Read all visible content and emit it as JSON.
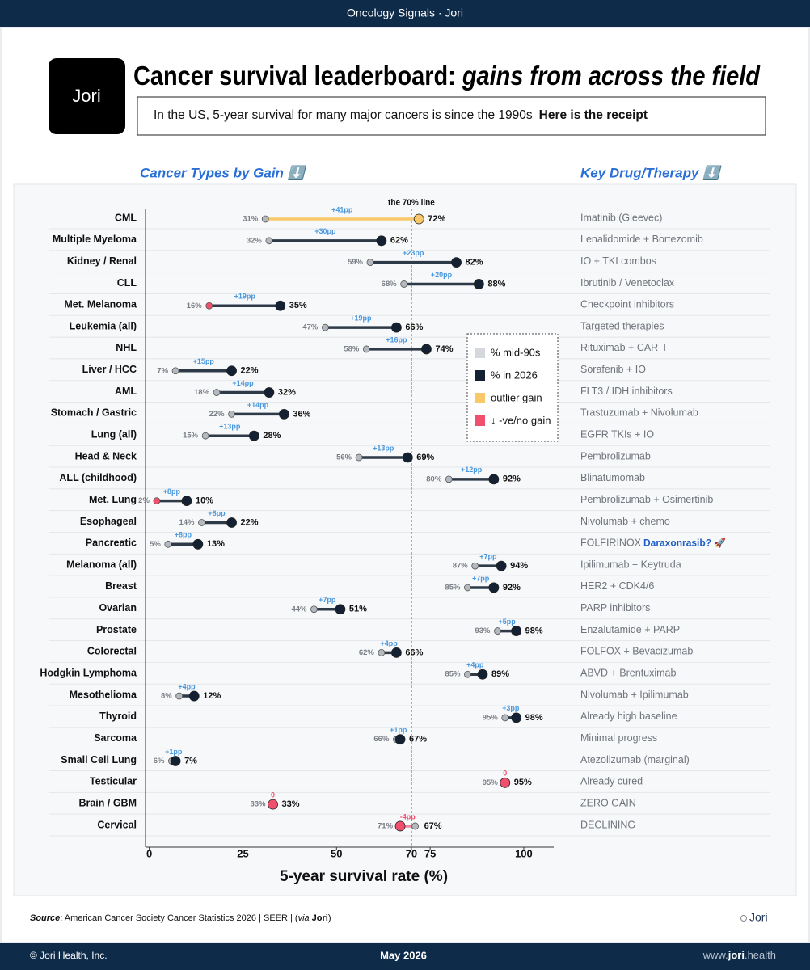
{
  "header": {
    "banner": "Oncology Signals · Jori",
    "logo": "Jori",
    "title": "Cancer survival leaderboard: ",
    "title_emphasis": "gains from across the field",
    "subtitle": "In the US, 5-year survival for many major cancers is since the 1990s",
    "subtitle_emphasis": "Here is the receipt",
    "left_heading": "Cancer Types by Gain ⬇️",
    "right_heading": "Key Drug/Therapy ⬇️"
  },
  "chart_data": {
    "type": "dumbbell",
    "categories": [
      "CML",
      "Multiple Myeloma",
      "Kidney / Renal",
      "CLL",
      "Met. Melanoma",
      "Leukemia (all)",
      "NHL",
      "Liver / HCC",
      "AML",
      "Stomach / Gastric",
      "Lung (all)",
      "Head & Neck",
      "ALL (childhood)",
      "Met. Lung",
      "Esophageal",
      "Pancreatic",
      "Melanoma (all)",
      "Breast",
      "Ovarian",
      "Prostate",
      "Colorectal",
      "Hodgkin Lymphoma",
      "Mesothelioma",
      "Thyroid",
      "Sarcoma",
      "Small Cell Lung",
      "Testicular",
      "Brain / GBM",
      "Cervical"
    ],
    "series": [
      {
        "name": "% mid-90s",
        "color": "#d4d7db",
        "values": [
          31,
          32,
          59,
          68,
          16,
          47,
          58,
          7,
          18,
          22,
          15,
          56,
          80,
          2,
          14,
          5,
          87,
          85,
          44,
          93,
          62,
          85,
          8,
          95,
          66,
          6,
          95,
          33,
          71
        ],
        "value_labels": [
          "31%",
          "32%",
          "59%",
          "68%",
          "16%",
          "47%",
          "58%",
          "7%",
          "18%",
          "22%",
          "15%",
          "56%",
          "80%",
          "2%",
          "14%",
          "5%",
          "87%",
          "85%",
          "44%",
          "93%",
          "62%",
          "85%",
          "8%",
          "95%",
          "66%",
          "6%",
          "95%",
          "33%",
          "71%"
        ],
        "colors": [
          "#b4b9c0",
          "#b4b9c0",
          "#b4b9c0",
          "#b4b9c0",
          "#f0506e",
          "#b4b9c0",
          "#b4b9c0",
          "#b4b9c0",
          "#b4b9c0",
          "#b4b9c0",
          "#b4b9c0",
          "#b4b9c0",
          "#b4b9c0",
          "#f0506e",
          "#b4b9c0",
          "#b4b9c0",
          "#b4b9c0",
          "#b4b9c0",
          "#b4b9c0",
          "#b4b9c0",
          "#b4b9c0",
          "#b4b9c0",
          "#b4b9c0",
          "#b4b9c0",
          "#b4b9c0",
          "#b4b9c0",
          "#f0506e",
          "#f0506e",
          "#b4b9c0"
        ]
      },
      {
        "name": "% in 2026",
        "color": "#142132",
        "values": [
          72,
          62,
          82,
          88,
          35,
          66,
          74,
          22,
          32,
          36,
          28,
          69,
          92,
          10,
          22,
          13,
          94,
          92,
          51,
          98,
          66,
          89,
          12,
          98,
          67,
          7,
          95,
          33,
          67
        ],
        "value_labels": [
          "72%",
          "62%",
          "82%",
          "88%",
          "35%",
          "66%",
          "74%",
          "22%",
          "32%",
          "36%",
          "28%",
          "69%",
          "92%",
          "10%",
          "22%",
          "13%",
          "94%",
          "92%",
          "51%",
          "98%",
          "66%",
          "89%",
          "12%",
          "98%",
          "67%",
          "7%",
          "95%",
          "33%",
          "67%"
        ],
        "colors": [
          "#f8c86a",
          "#142132",
          "#142132",
          "#142132",
          "#142132",
          "#142132",
          "#142132",
          "#142132",
          "#142132",
          "#142132",
          "#142132",
          "#142132",
          "#142132",
          "#142132",
          "#142132",
          "#142132",
          "#142132",
          "#142132",
          "#142132",
          "#142132",
          "#142132",
          "#142132",
          "#142132",
          "#142132",
          "#142132",
          "#142132",
          "#f0506e",
          "#f0506e",
          "#f0506e"
        ]
      }
    ],
    "line_colors": [
      "#f8c86a",
      "#2e3a48",
      "#2e3a48",
      "#2e3a48",
      "#2e3a48",
      "#2e3a48",
      "#2e3a48",
      "#2e3a48",
      "#2e3a48",
      "#2e3a48",
      "#2e3a48",
      "#2e3a48",
      "#2e3a48",
      "#2e3a48",
      "#2e3a48",
      "#2e3a48",
      "#2e3a48",
      "#2e3a48",
      "#2e3a48",
      "#2e3a48",
      "#2e3a48",
      "#2e3a48",
      "#2e3a48",
      "#2e3a48",
      "#2e3a48",
      "#2e3a48",
      "#2e3a48",
      "#2e3a48",
      "#f48aa0"
    ],
    "gain_labels": [
      "+41pp",
      "+30pp",
      "+23pp",
      "+20pp",
      "+19pp",
      "+19pp",
      "+16pp",
      "+15pp",
      "+14pp",
      "+14pp",
      "+13pp",
      "+13pp",
      "+12pp",
      "+8pp",
      "+8pp",
      "+8pp",
      "+7pp",
      "+7pp",
      "+7pp",
      "+5pp",
      "+4pp",
      "+4pp",
      "+4pp",
      "+3pp",
      "+1pp",
      "+1pp",
      "0",
      "0",
      "-4pp"
    ],
    "gain_label_colors": [
      "#4a97dc",
      "#4a97dc",
      "#4a97dc",
      "#4a97dc",
      "#4a97dc",
      "#4a97dc",
      "#4a97dc",
      "#4a97dc",
      "#4a97dc",
      "#4a97dc",
      "#4a97dc",
      "#4a97dc",
      "#4a97dc",
      "#4a97dc",
      "#4a97dc",
      "#4a97dc",
      "#4a97dc",
      "#4a97dc",
      "#4a97dc",
      "#4a97dc",
      "#4a97dc",
      "#4a97dc",
      "#4a97dc",
      "#4a97dc",
      "#4a97dc",
      "#4a97dc",
      "#f0506e",
      "#f0506e",
      "#f0506e"
    ],
    "therapies": [
      "Imatinib (Gleevec)",
      "Lenalidomide + Bortezomib",
      "IO + TKI combos",
      "Ibrutinib / Venetoclax",
      "Checkpoint inhibitors",
      "Targeted therapies",
      "Rituximab + CAR-T",
      "Sorafenib + IO",
      "FLT3 / IDH inhibitors",
      "Trastuzumab + Nivolumab",
      "EGFR TKIs + IO",
      "Pembrolizumab",
      "Blinatumomab",
      "Pembrolizumab + Osimertinib",
      "Nivolumab + chemo",
      "FOLFIRINOX",
      "Ipilimumab + Keytruda",
      "HER2 + CDK4/6",
      "PARP inhibitors",
      "Enzalutamide + PARP",
      "FOLFOX + Bevacizumab",
      "ABVD + Brentuximab",
      "Nivolumab + Ipilimumab",
      "Already high baseline",
      "Minimal progress",
      "Atezolizumab (marginal)",
      "Already cured",
      "ZERO GAIN",
      "DECLINING"
    ],
    "therapy_callout": {
      "category": "Pancreatic",
      "text": "Daraxonrasib? 🚀",
      "color": "#1f5fc4"
    },
    "highlight_keys": [
      {
        "name": "outlier gain",
        "color": "#f8c86a"
      },
      {
        "name": "↓ -ve/no gain",
        "color": "#f0506e"
      }
    ],
    "reference_line": {
      "value": 70,
      "label": "the 70% line"
    },
    "xlabel": "5-year survival rate (%)",
    "xlim": [
      -1,
      108
    ],
    "xticks": [
      0,
      25,
      50,
      70,
      75,
      100
    ],
    "legend": "right"
  },
  "footer": {
    "source_label": "Source",
    "source_text": ": American Cancer Society Cancer Statistics 2026 | SEER | (",
    "source_via": "via",
    "source_brand": "Jori",
    "source_close": ")",
    "logo": "Jori",
    "copyright": "© Jori Health, Inc.",
    "date": "May 2026",
    "url_prefix": "www.",
    "url_brand": "jori",
    "url_suffix": ".health"
  }
}
